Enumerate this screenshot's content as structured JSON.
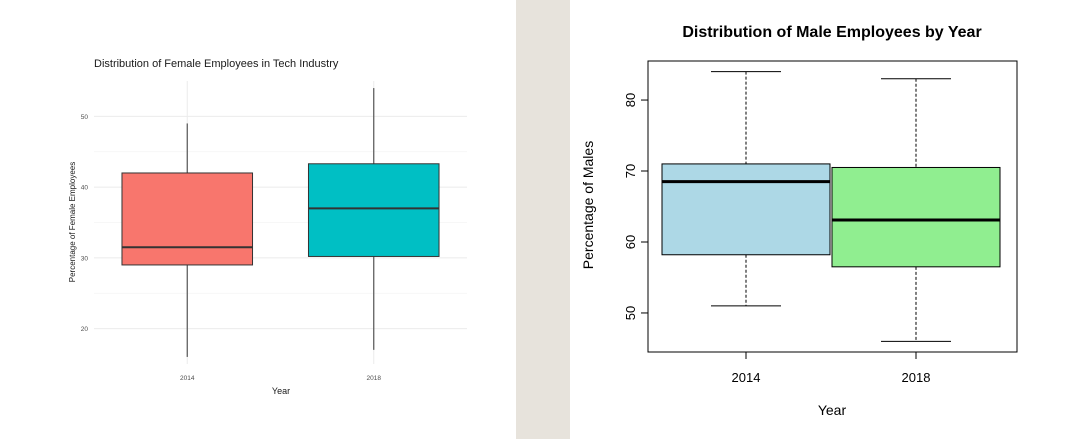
{
  "colors": {
    "page_bg": "#e7e3dc",
    "female_2014": "#f8766d",
    "female_2018": "#00bfc4",
    "male_2014": "#add8e6",
    "male_2018": "#90ee90",
    "ggplot_grid": "#ebebeb"
  },
  "chart_data": [
    {
      "type": "boxplot",
      "title": "Distribution of Female Employees in Tech Industry",
      "xlabel": "Year",
      "ylabel": "Percentage of Female Employees",
      "categories": [
        "2014",
        "2018"
      ],
      "ylim": [
        15,
        55
      ],
      "yticks": [
        20,
        30,
        40,
        50
      ],
      "grid": true,
      "boxes": [
        {
          "category": "2014",
          "min": 16,
          "q1": 29,
          "median": 31.5,
          "q3": 42,
          "max": 49,
          "color": "#f8766d"
        },
        {
          "category": "2018",
          "min": 17,
          "q1": 30.2,
          "median": 37,
          "q3": 43.3,
          "max": 54,
          "color": "#00bfc4"
        }
      ]
    },
    {
      "type": "boxplot",
      "title": "Distribution of Male Employees by Year",
      "xlabel": "Year",
      "ylabel": "Percentage of Males",
      "categories": [
        "2014",
        "2018"
      ],
      "ylim": [
        44.5,
        85.5
      ],
      "yticks": [
        50,
        60,
        70,
        80
      ],
      "grid": false,
      "boxes": [
        {
          "category": "2014",
          "min": 51,
          "q1": 58.2,
          "median": 68.5,
          "q3": 71,
          "max": 84,
          "color": "#add8e6"
        },
        {
          "category": "2018",
          "min": 46,
          "q1": 56.5,
          "median": 63.1,
          "q3": 70.5,
          "max": 83,
          "color": "#90ee90"
        }
      ]
    }
  ]
}
